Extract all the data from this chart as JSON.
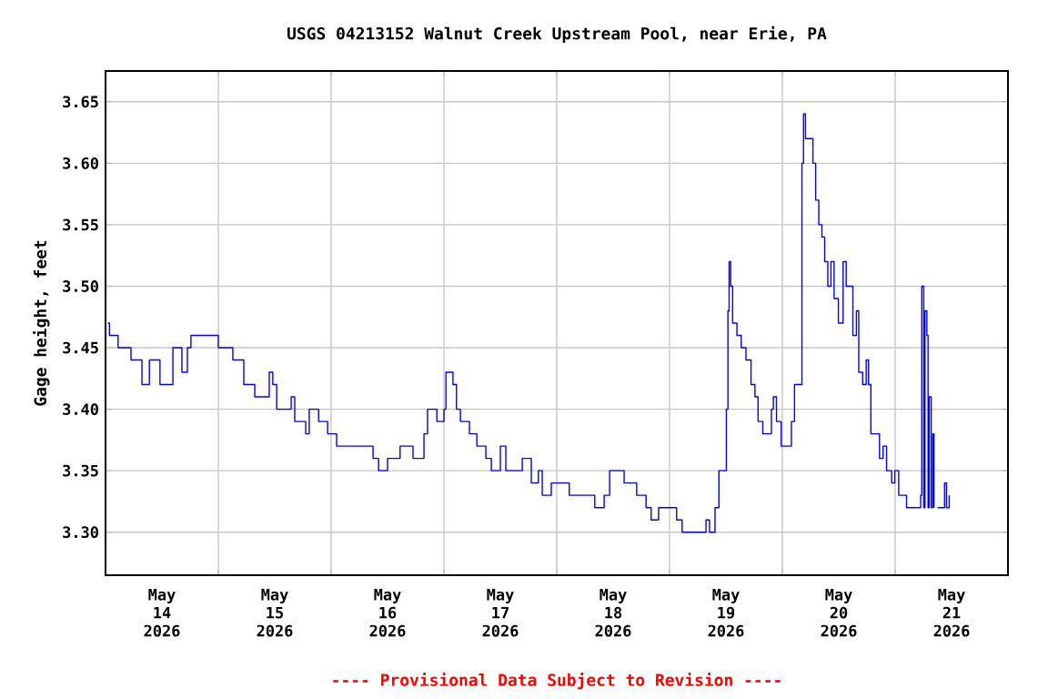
{
  "chart_data": {
    "type": "step",
    "title": "USGS 04213152 Walnut Creek Upstream Pool, near Erie, PA",
    "ylabel": "Gage height, feet",
    "annotations": [
      "---- Provisional Data Subject to Revision ----"
    ],
    "xlim": [
      "2026-05-14",
      "2026-05-22"
    ],
    "ylim": [
      3.265,
      3.675
    ],
    "xticks": [
      {
        "value": "2026-05-14T12:00",
        "label": "May 14 2026"
      },
      {
        "value": "2026-05-15T12:00",
        "label": "May 15 2026"
      },
      {
        "value": "2026-05-16T12:00",
        "label": "May 16 2026"
      },
      {
        "value": "2026-05-17T12:00",
        "label": "May 17 2026"
      },
      {
        "value": "2026-05-18T12:00",
        "label": "May 18 2026"
      },
      {
        "value": "2026-05-19T12:00",
        "label": "May 19 2026"
      },
      {
        "value": "2026-05-20T12:00",
        "label": "May 20 2026"
      },
      {
        "value": "2026-05-21T12:00",
        "label": "May 21 2026"
      },
      {
        "value": "2026-05-15",
        "label": null
      },
      {
        "value": "2026-05-16",
        "label": null
      },
      {
        "value": "2026-05-17",
        "label": null
      },
      {
        "value": "2026-05-18",
        "label": null
      },
      {
        "value": "2026-05-19",
        "label": null
      },
      {
        "value": "2026-05-20",
        "label": null
      },
      {
        "value": "2026-05-21",
        "label": null
      }
    ],
    "yticks": [
      {
        "value": 3.3,
        "label": "3.30"
      },
      {
        "value": 3.35,
        "label": "3.35"
      },
      {
        "value": 3.4,
        "label": "3.40"
      },
      {
        "value": 3.45,
        "label": "3.45"
      },
      {
        "value": 3.5,
        "label": "3.50"
      },
      {
        "value": 3.55,
        "label": "3.55"
      },
      {
        "value": 3.6,
        "label": "3.60"
      },
      {
        "value": 3.65,
        "label": "3.65"
      }
    ],
    "grid": true,
    "marker": "none",
    "line_style": "solid",
    "series": [
      {
        "color": "#0000ff",
        "x": [
          "2026-05-14T00:30",
          "2026-05-14T00:50",
          "2026-05-14T02:40",
          "2026-05-14T05:25",
          "2026-05-14T07:45",
          "2026-05-14T09:20",
          "2026-05-14T11:35",
          "2026-05-14T14:20",
          "2026-05-14T16:15",
          "2026-05-14T17:25",
          "2026-05-14T18:10",
          "2026-05-14T23:15",
          "2026-05-15T00:00",
          "2026-05-15T03:05",
          "2026-05-15T05:25",
          "2026-05-15T07:45",
          "2026-05-15T10:50",
          "2026-05-15T11:35",
          "2026-05-15T12:25",
          "2026-05-15T15:30",
          "2026-05-15T16:15",
          "2026-05-15T18:35",
          "2026-05-15T19:20",
          "2026-05-15T21:20",
          "2026-05-15T23:15",
          "2026-05-16T01:10",
          "2026-05-16T08:05",
          "2026-05-16T08:55",
          "2026-05-16T10:05",
          "2026-05-16T12:00",
          "2026-05-16T14:40",
          "2026-05-16T17:25",
          "2026-05-16T19:45",
          "2026-05-16T20:30",
          "2026-05-16T22:30",
          "2026-05-17T00:00",
          "2026-05-17T00:25",
          "2026-05-17T01:55",
          "2026-05-17T02:40",
          "2026-05-17T03:30",
          "2026-05-17T05:25",
          "2026-05-17T07:00",
          "2026-05-17T08:55",
          "2026-05-17T10:05",
          "2026-05-17T12:00",
          "2026-05-17T13:10",
          "2026-05-17T16:40",
          "2026-05-17T18:35",
          "2026-05-17T20:05",
          "2026-05-17T20:55",
          "2026-05-17T22:50",
          "2026-05-18T02:40",
          "2026-05-18T06:10",
          "2026-05-18T08:05",
          "2026-05-18T10:05",
          "2026-05-18T11:15",
          "2026-05-18T13:10",
          "2026-05-18T14:20",
          "2026-05-18T17:00",
          "2026-05-18T19:00",
          "2026-05-18T20:05",
          "2026-05-18T21:40",
          "2026-05-19T01:30",
          "2026-05-19T02:40",
          "2026-05-19T07:45",
          "2026-05-19T08:30",
          "2026-05-19T09:40",
          "2026-05-19T10:30",
          "2026-05-19T11:35",
          "2026-05-19T12:05",
          "2026-05-19T12:25",
          "2026-05-19T12:40",
          "2026-05-19T13:00",
          "2026-05-19T13:25",
          "2026-05-19T14:20",
          "2026-05-19T15:15",
          "2026-05-19T16:15",
          "2026-05-19T17:20",
          "2026-05-19T18:10",
          "2026-05-19T18:50",
          "2026-05-19T19:50",
          "2026-05-19T20:50",
          "2026-05-19T21:40",
          "2026-05-19T22:05",
          "2026-05-19T22:45",
          "2026-05-19T23:45",
          "2026-05-20T01:15",
          "2026-05-20T01:55",
          "2026-05-20T02:35",
          "2026-05-20T03:50",
          "2026-05-20T04:10",
          "2026-05-20T04:30",
          "2026-05-20T04:55",
          "2026-05-20T05:50",
          "2026-05-20T06:30",
          "2026-05-20T07:05",
          "2026-05-20T07:45",
          "2026-05-20T08:25",
          "2026-05-20T09:00",
          "2026-05-20T09:40",
          "2026-05-20T10:20",
          "2026-05-20T11:00",
          "2026-05-20T11:55",
          "2026-05-20T12:55",
          "2026-05-20T13:35",
          "2026-05-20T14:25",
          "2026-05-20T15:00",
          "2026-05-20T15:45",
          "2026-05-20T16:15",
          "2026-05-20T17:05",
          "2026-05-20T17:50",
          "2026-05-20T18:20",
          "2026-05-20T18:50",
          "2026-05-20T20:00",
          "2026-05-20T20:40",
          "2026-05-20T21:25",
          "2026-05-20T22:10",
          "2026-05-20T23:15",
          "2026-05-20T23:55",
          "2026-05-21T00:45",
          "2026-05-21T02:25",
          "2026-05-21T03:20",
          "2026-05-21T05:05",
          "2026-05-21T05:25",
          "2026-05-21T05:40",
          "2026-05-21T06:05",
          "2026-05-21T06:20",
          "2026-05-21T06:45",
          "2026-05-21T07:00",
          "2026-05-21T07:15",
          "2026-05-21T07:40",
          "2026-05-21T08:00",
          "2026-05-21T08:15",
          "2026-05-21T08:35",
          "2026-05-21T09:00",
          "2026-05-21T10:10",
          "2026-05-21T10:30",
          "2026-05-21T10:55",
          "2026-05-21T11:30"
        ],
        "values": [
          3.47,
          3.46,
          3.45,
          3.44,
          3.42,
          3.44,
          3.42,
          3.45,
          3.43,
          3.45,
          3.46,
          3.46,
          3.45,
          3.44,
          3.42,
          3.41,
          3.43,
          3.42,
          3.4,
          3.41,
          3.39,
          3.38,
          3.4,
          3.39,
          3.38,
          3.37,
          3.37,
          3.36,
          3.35,
          3.36,
          3.37,
          3.36,
          3.38,
          3.4,
          3.39,
          3.4,
          3.43,
          3.42,
          3.4,
          3.39,
          3.38,
          3.37,
          3.36,
          3.35,
          3.37,
          3.35,
          3.36,
          3.34,
          3.35,
          3.33,
          3.34,
          3.33,
          3.33,
          3.32,
          3.33,
          3.35,
          3.35,
          3.34,
          3.33,
          3.32,
          3.31,
          3.32,
          3.31,
          3.3,
          3.31,
          3.3,
          3.32,
          3.35,
          3.35,
          3.4,
          3.48,
          3.52,
          3.5,
          3.47,
          3.46,
          3.45,
          3.44,
          3.42,
          3.41,
          3.39,
          3.38,
          3.38,
          3.4,
          3.41,
          3.39,
          3.37,
          3.37,
          3.39,
          3.42,
          3.42,
          3.6,
          3.64,
          3.62,
          3.62,
          3.6,
          3.57,
          3.55,
          3.54,
          3.52,
          3.5,
          3.52,
          3.49,
          3.47,
          3.52,
          3.5,
          3.5,
          3.46,
          3.48,
          3.43,
          3.42,
          3.44,
          3.42,
          3.38,
          3.38,
          3.36,
          3.37,
          3.35,
          3.34,
          3.35,
          3.33,
          3.32,
          3.32,
          3.32,
          3.33,
          3.5,
          3.32,
          3.48,
          3.46,
          3.32,
          3.41,
          3.32,
          3.38,
          3.32,
          null,
          3.32,
          3.32,
          3.34,
          3.32,
          3.33
        ]
      }
    ]
  }
}
